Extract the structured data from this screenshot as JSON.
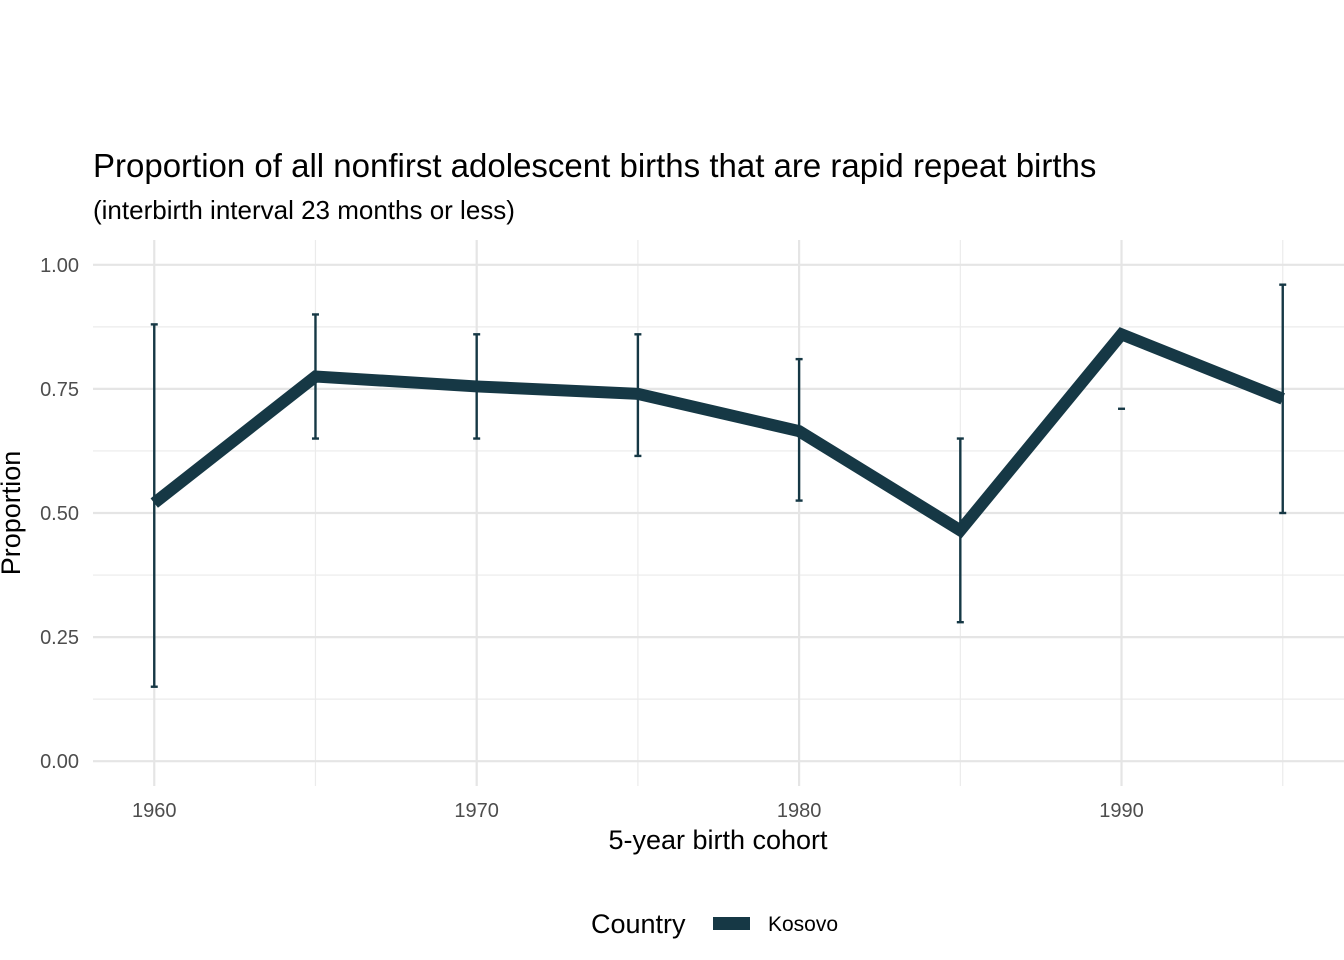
{
  "chart_data": {
    "type": "line",
    "title": "Proportion of all nonfirst adolescent births that are rapid repeat births",
    "subtitle": "(interbirth interval 23 months or less)",
    "xlabel": "5-year birth cohort",
    "ylabel": "Proportion",
    "x": [
      1960,
      1965,
      1970,
      1975,
      1980,
      1985,
      1990,
      1995
    ],
    "xticks": [
      "1960",
      "1970",
      "1980",
      "1990"
    ],
    "xtick_values": [
      1960,
      1970,
      1980,
      1990
    ],
    "yticks": [
      "0.00",
      "0.25",
      "0.50",
      "0.75",
      "1.00"
    ],
    "ytick_values": [
      0,
      0.25,
      0.5,
      0.75,
      1.0
    ],
    "xlim": [
      1958.1,
      1996.9
    ],
    "ylim": [
      -0.05,
      1.05
    ],
    "grid": true,
    "series": [
      {
        "name": "Kosovo",
        "color": "#163845",
        "values": [
          0.52,
          0.775,
          0.755,
          0.74,
          0.665,
          0.465,
          0.86,
          0.73
        ],
        "lower": [
          0.15,
          0.65,
          0.65,
          0.615,
          0.525,
          0.28,
          0.71,
          0.5
        ],
        "upper": [
          0.88,
          0.9,
          0.86,
          0.86,
          0.81,
          0.65,
          null,
          0.96
        ]
      }
    ],
    "legend": {
      "title": "Country",
      "position": "bottom"
    }
  }
}
